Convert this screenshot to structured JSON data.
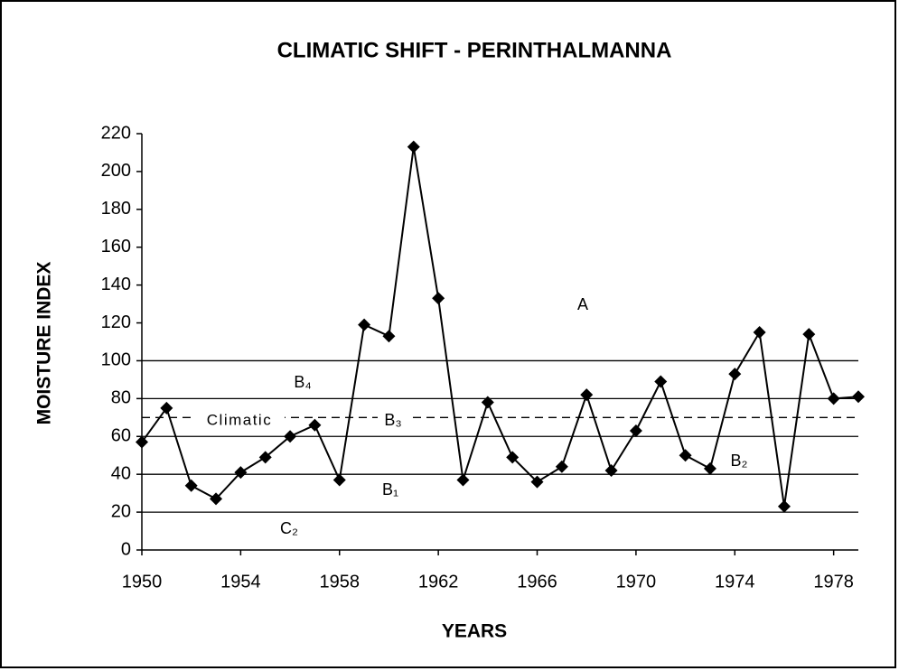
{
  "chart_data": {
    "type": "line",
    "title": "CLIMATIC SHIFT - PERINTHALMANNA",
    "xlabel": "YEARS",
    "ylabel": "MOISTURE INDEX",
    "x": [
      1950,
      1951,
      1952,
      1953,
      1954,
      1955,
      1956,
      1957,
      1958,
      1959,
      1960,
      1961,
      1962,
      1963,
      1964,
      1965,
      1966,
      1967,
      1968,
      1969,
      1970,
      1971,
      1972,
      1973,
      1974,
      1975,
      1976,
      1977,
      1978,
      1979
    ],
    "series": [
      {
        "color": "#000000",
        "values": [
          57,
          75,
          34,
          27,
          41,
          49,
          60,
          66,
          37,
          119,
          113,
          213,
          133,
          37,
          78,
          49,
          36,
          44,
          82,
          42,
          63,
          89,
          50,
          43,
          93,
          115,
          23,
          114,
          80,
          81
        ]
      }
    ],
    "xlim": [
      1950,
      1979
    ],
    "xticks": [
      1950,
      1954,
      1958,
      1962,
      1966,
      1970,
      1974,
      1978
    ],
    "ylim": [
      0,
      220
    ],
    "yticks": [
      0,
      20,
      40,
      60,
      80,
      100,
      120,
      140,
      160,
      180,
      200,
      220
    ],
    "reference_lines": [
      20,
      40,
      60,
      80,
      100
    ],
    "climatic_line": 70,
    "annotations": [
      "A",
      "B₄",
      "Climatic",
      "B₃",
      "B₁",
      "C₂",
      "B₂"
    ]
  }
}
